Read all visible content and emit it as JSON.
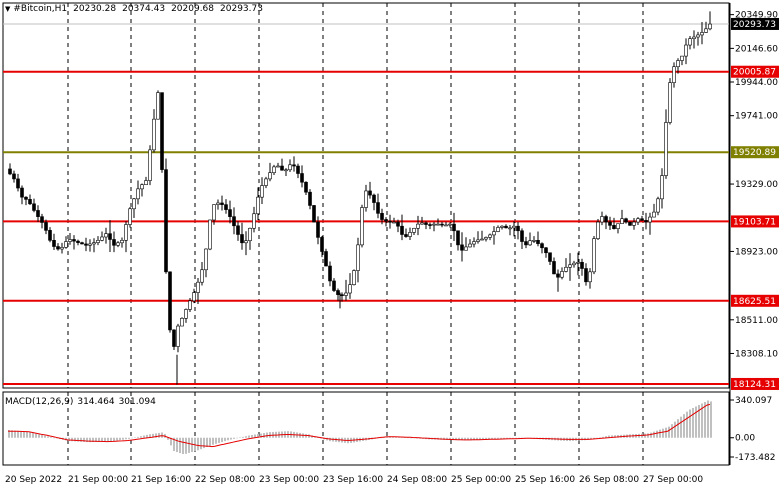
{
  "header": {
    "symbol": "#Bitcoin,H1",
    "open": "20230.28",
    "high": "20374.43",
    "low": "20209.68",
    "close": "20293.73"
  },
  "macd": {
    "label": "MACD(12,26,9)",
    "main": "314.464",
    "signal": "301.094",
    "ticks": [
      {
        "v": 340.097,
        "text": "340.097"
      },
      {
        "v": 0,
        "text": "0.00"
      },
      {
        "v": -173.482,
        "text": "-173.482"
      }
    ]
  },
  "price_axis": [
    {
      "v": 20349.9,
      "text": "20349.90"
    },
    {
      "v": 20146.6,
      "text": "20146.60"
    },
    {
      "v": 19944.0,
      "text": "19944.00"
    },
    {
      "v": 19741.0,
      "text": "19741.00"
    },
    {
      "v": 19329.0,
      "text": "19329.00"
    },
    {
      "v": 18923.0,
      "text": "18923.00"
    },
    {
      "v": 18511.0,
      "text": "18511.00"
    },
    {
      "v": 18308.1,
      "text": "18308.10"
    }
  ],
  "current_price": {
    "v": 20293.73,
    "text": "20293.73"
  },
  "levels": [
    {
      "v": 20005.87,
      "text": "20005.87",
      "color": "#e60000"
    },
    {
      "v": 19520.89,
      "text": "19520.89",
      "color": "#808000"
    },
    {
      "v": 19103.71,
      "text": "19103.71",
      "color": "#e60000"
    },
    {
      "v": 18625.51,
      "text": "18625.51",
      "color": "#e60000"
    },
    {
      "v": 18124.31,
      "text": "18124.31",
      "color": "#e60000"
    }
  ],
  "time_axis": [
    "20 Sep 2022",
    "21 Sep 00:00",
    "21 Sep 16:00",
    "22 Sep 08:00",
    "23 Sep 00:00",
    "23 Sep 16:00",
    "24 Sep 08:00",
    "25 Sep 00:00",
    "25 Sep 16:00",
    "26 Sep 08:00",
    "27 Sep 00:00"
  ],
  "chart_data": {
    "type": "candlestick",
    "symbol": "#Bitcoin",
    "timeframe": "H1",
    "price_range": [
      18100,
      20420
    ],
    "path": [
      [
        0,
        19420
      ],
      [
        8,
        19360
      ],
      [
        16,
        19250
      ],
      [
        22,
        19230
      ],
      [
        30,
        19150
      ],
      [
        38,
        19080
      ],
      [
        46,
        18960
      ],
      [
        54,
        18930
      ],
      [
        62,
        19000
      ],
      [
        70,
        18980
      ],
      [
        80,
        18960
      ],
      [
        90,
        18980
      ],
      [
        100,
        19030
      ],
      [
        108,
        18960
      ],
      [
        116,
        18990
      ],
      [
        124,
        19180
      ],
      [
        132,
        19300
      ],
      [
        140,
        19350
      ],
      [
        148,
        19720
      ],
      [
        152,
        19880
      ],
      [
        157,
        19300
      ],
      [
        160,
        18800
      ],
      [
        163,
        18500
      ],
      [
        167,
        18300
      ],
      [
        170,
        18450
      ],
      [
        176,
        18520
      ],
      [
        182,
        18600
      ],
      [
        190,
        18700
      ],
      [
        198,
        18850
      ],
      [
        206,
        19200
      ],
      [
        214,
        19220
      ],
      [
        222,
        19160
      ],
      [
        230,
        19050
      ],
      [
        238,
        18950
      ],
      [
        246,
        19100
      ],
      [
        254,
        19300
      ],
      [
        262,
        19380
      ],
      [
        270,
        19450
      ],
      [
        278,
        19400
      ],
      [
        286,
        19460
      ],
      [
        294,
        19370
      ],
      [
        302,
        19250
      ],
      [
        310,
        19050
      ],
      [
        318,
        18880
      ],
      [
        326,
        18700
      ],
      [
        334,
        18650
      ],
      [
        342,
        18680
      ],
      [
        350,
        18850
      ],
      [
        358,
        19300
      ],
      [
        366,
        19250
      ],
      [
        374,
        19120
      ],
      [
        382,
        19100
      ],
      [
        390,
        19100
      ],
      [
        398,
        19000
      ],
      [
        406,
        19050
      ],
      [
        414,
        19100
      ],
      [
        422,
        19080
      ],
      [
        430,
        19090
      ],
      [
        438,
        19080
      ],
      [
        446,
        19090
      ],
      [
        454,
        18920
      ],
      [
        462,
        18960
      ],
      [
        470,
        18990
      ],
      [
        478,
        19000
      ],
      [
        486,
        19030
      ],
      [
        494,
        19080
      ],
      [
        502,
        19060
      ],
      [
        510,
        19080
      ],
      [
        518,
        18950
      ],
      [
        526,
        19000
      ],
      [
        534,
        18960
      ],
      [
        542,
        18900
      ],
      [
        550,
        18750
      ],
      [
        558,
        18820
      ],
      [
        566,
        18850
      ],
      [
        574,
        18860
      ],
      [
        582,
        18700
      ],
      [
        588,
        19000
      ],
      [
        594,
        19150
      ],
      [
        600,
        19100
      ],
      [
        608,
        19060
      ],
      [
        616,
        19120
      ],
      [
        624,
        19080
      ],
      [
        632,
        19120
      ],
      [
        640,
        19100
      ],
      [
        648,
        19160
      ],
      [
        655,
        19300
      ],
      [
        660,
        19700
      ],
      [
        665,
        20000
      ],
      [
        670,
        20060
      ],
      [
        676,
        20100
      ],
      [
        682,
        20200
      ],
      [
        690,
        20220
      ],
      [
        698,
        20250
      ],
      [
        704,
        20293
      ]
    ],
    "spikes": [
      [
        152,
        19880
      ],
      [
        167,
        18120
      ],
      [
        330,
        18580
      ],
      [
        548,
        18680
      ]
    ],
    "macd_path": [
      [
        0,
        60
      ],
      [
        20,
        55
      ],
      [
        40,
        20
      ],
      [
        60,
        -20
      ],
      [
        80,
        -30
      ],
      [
        100,
        -35
      ],
      [
        120,
        -25
      ],
      [
        140,
        0
      ],
      [
        155,
        20
      ],
      [
        170,
        -30
      ],
      [
        190,
        -70
      ],
      [
        205,
        -80
      ],
      [
        220,
        -50
      ],
      [
        240,
        -10
      ],
      [
        260,
        20
      ],
      [
        280,
        30
      ],
      [
        300,
        20
      ],
      [
        320,
        -10
      ],
      [
        340,
        -25
      ],
      [
        360,
        -10
      ],
      [
        380,
        10
      ],
      [
        400,
        5
      ],
      [
        420,
        -5
      ],
      [
        440,
        -15
      ],
      [
        460,
        -20
      ],
      [
        480,
        -15
      ],
      [
        500,
        -10
      ],
      [
        520,
        -5
      ],
      [
        540,
        -8
      ],
      [
        560,
        -15
      ],
      [
        580,
        -15
      ],
      [
        600,
        0
      ],
      [
        620,
        15
      ],
      [
        640,
        25
      ],
      [
        660,
        60
      ],
      [
        680,
        180
      ],
      [
        700,
        300
      ],
      [
        704,
        301
      ]
    ],
    "macd_hist": [
      [
        0,
        70
      ],
      [
        20,
        50
      ],
      [
        40,
        10
      ],
      [
        60,
        -30
      ],
      [
        80,
        -40
      ],
      [
        100,
        -35
      ],
      [
        120,
        -10
      ],
      [
        140,
        30
      ],
      [
        155,
        50
      ],
      [
        165,
        -120
      ],
      [
        175,
        -150
      ],
      [
        190,
        -110
      ],
      [
        205,
        -60
      ],
      [
        220,
        -20
      ],
      [
        240,
        20
      ],
      [
        260,
        50
      ],
      [
        280,
        60
      ],
      [
        300,
        30
      ],
      [
        320,
        -30
      ],
      [
        340,
        -50
      ],
      [
        360,
        -20
      ],
      [
        380,
        15
      ],
      [
        400,
        0
      ],
      [
        420,
        -15
      ],
      [
        440,
        -20
      ],
      [
        460,
        -25
      ],
      [
        480,
        -15
      ],
      [
        500,
        -5
      ],
      [
        520,
        -5
      ],
      [
        540,
        -20
      ],
      [
        560,
        -30
      ],
      [
        580,
        -20
      ],
      [
        600,
        20
      ],
      [
        620,
        30
      ],
      [
        640,
        40
      ],
      [
        660,
        100
      ],
      [
        680,
        250
      ],
      [
        700,
        340
      ],
      [
        704,
        314
      ]
    ]
  },
  "colors": {
    "background": "#ffffff",
    "grid": "#000000",
    "candle": "#000000",
    "level_red": "#e60000",
    "level_olive": "#808000",
    "macd_hist": "#c0c0c0",
    "macd_signal": "#e60000"
  }
}
